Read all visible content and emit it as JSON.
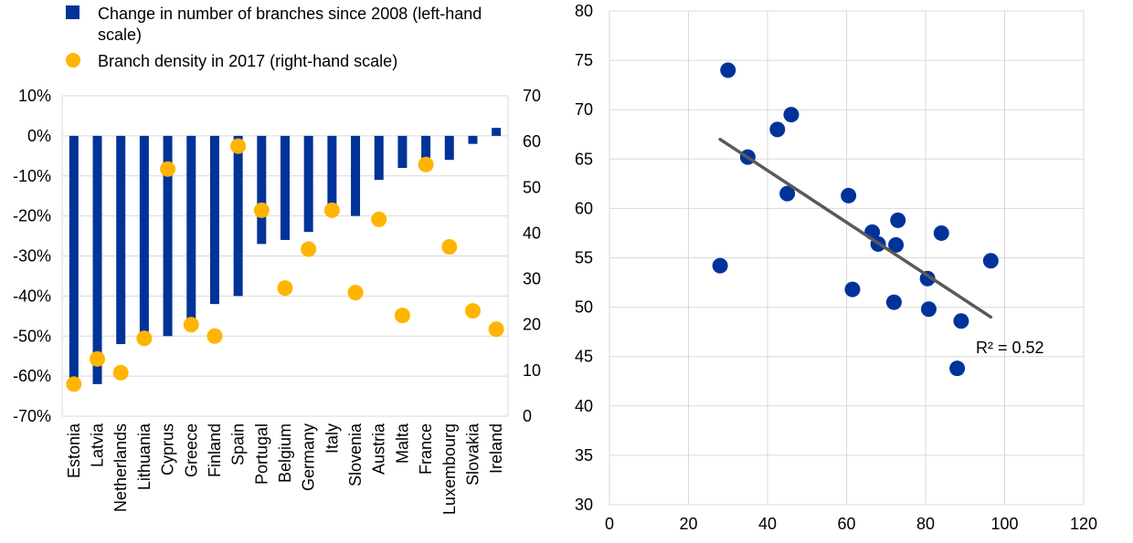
{
  "chart_data": [
    {
      "type": "bar",
      "categories": [
        "Estonia",
        "Latvia",
        "Netherlands",
        "Lithuania",
        "Cyprus",
        "Greece",
        "Finland",
        "Spain",
        "Portugal",
        "Belgium",
        "Germany",
        "Italy",
        "Slovenia",
        "Austria",
        "Malta",
        "France",
        "Luxembourg",
        "Slovakia",
        "Ireland"
      ],
      "series": [
        {
          "name": "Change in number of branches since 2008 (left-hand scale)",
          "kind": "bar",
          "axis": "left",
          "color": "#003399",
          "values": [
            -61,
            -62,
            -52,
            -50,
            -50,
            -47,
            -42,
            -40,
            -27,
            -26,
            -24,
            -18,
            -20,
            -11,
            -8,
            -6,
            -6,
            -2,
            2
          ]
        },
        {
          "name": "Branch density in 2017 (right-hand scale)",
          "kind": "scatter",
          "axis": "right",
          "color": "#FFB400",
          "values": [
            7,
            12.5,
            9.5,
            17,
            54,
            20,
            17.5,
            59,
            45,
            28,
            36.5,
            45,
            27,
            43,
            22,
            55,
            37,
            23,
            19
          ]
        }
      ],
      "left_axis": {
        "ylim": [
          -70,
          10
        ],
        "ticks": [
          "10%",
          "0%",
          "-10%",
          "-20%",
          "-30%",
          "-40%",
          "-50%",
          "-60%",
          "-70%"
        ]
      },
      "right_axis": {
        "ylim": [
          0,
          70
        ],
        "ticks": [
          "70",
          "60",
          "50",
          "40",
          "30",
          "20",
          "10",
          "0"
        ]
      },
      "legend_labels": [
        "Change in number of branches since 2008 (left-hand",
        "scale)",
        "Branch density in 2017 (right-hand scale)"
      ],
      "legend_position": "top",
      "grid": true
    },
    {
      "type": "scatter",
      "x_axis": {
        "xlim": [
          0,
          120
        ],
        "ticks": [
          "0",
          "20",
          "40",
          "60",
          "80",
          "100",
          "120"
        ]
      },
      "y_axis": {
        "ylim": [
          30,
          80
        ],
        "ticks": [
          "80",
          "75",
          "70",
          "65",
          "60",
          "55",
          "50",
          "45",
          "40",
          "35",
          "30"
        ]
      },
      "points": [
        {
          "x": 28,
          "y": 54.2
        },
        {
          "x": 30,
          "y": 74
        },
        {
          "x": 35,
          "y": 65.2
        },
        {
          "x": 42.5,
          "y": 68
        },
        {
          "x": 45,
          "y": 61.5
        },
        {
          "x": 46,
          "y": 69.5
        },
        {
          "x": 60.5,
          "y": 61.3
        },
        {
          "x": 61.5,
          "y": 51.8
        },
        {
          "x": 66.5,
          "y": 57.6
        },
        {
          "x": 68,
          "y": 56.4
        },
        {
          "x": 72,
          "y": 50.5
        },
        {
          "x": 72.5,
          "y": 56.3
        },
        {
          "x": 73,
          "y": 58.8
        },
        {
          "x": 80.5,
          "y": 52.9
        },
        {
          "x": 80.8,
          "y": 49.8
        },
        {
          "x": 84,
          "y": 57.5
        },
        {
          "x": 88,
          "y": 43.8
        },
        {
          "x": 89,
          "y": 48.6
        },
        {
          "x": 96.5,
          "y": 54.7
        }
      ],
      "point_color": "#003399",
      "trendline": {
        "x": [
          28,
          96.5
        ],
        "y": [
          67,
          49
        ],
        "color": "#595959"
      },
      "annotation": "R² = 0.52",
      "grid": true
    }
  ]
}
